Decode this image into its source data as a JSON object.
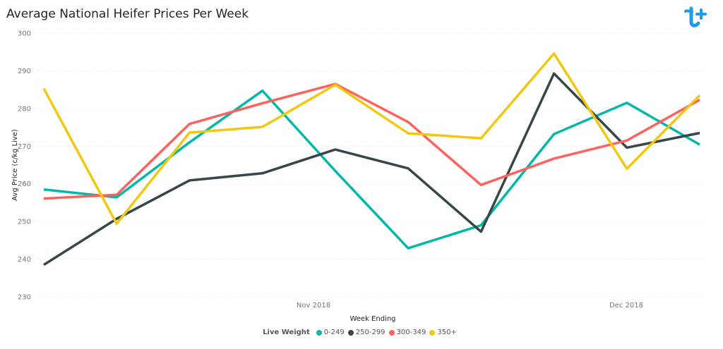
{
  "chart_data": {
    "type": "line",
    "title": "Average National Heifer Prices Per Week",
    "xlabel": "Week Ending",
    "ylabel": "Avg Price (c/kg Live)",
    "ylim": [
      230,
      300
    ],
    "yticks": [
      "230",
      "240",
      "250",
      "260",
      "270",
      "280",
      "290",
      "300"
    ],
    "xticks": [
      "Nov 2018",
      "Dec 2018"
    ],
    "grid": true,
    "legend_placement": "bottom-center",
    "legend_title": "Live Weight",
    "series": [
      {
        "name": "0-249",
        "color": "#01B8AA",
        "values": [
          258.5,
          256.4,
          271.0,
          284.7,
          263.4,
          242.9,
          249.0,
          273.2,
          281.5,
          270.4
        ]
      },
      {
        "name": "250-299",
        "color": "#374649",
        "values": [
          238.5,
          250.7,
          260.9,
          262.8,
          269.1,
          264.1,
          247.3,
          289.3,
          269.6,
          273.5
        ]
      },
      {
        "name": "300-349",
        "color": "#FD625E",
        "values": [
          256.1,
          257.1,
          275.9,
          281.4,
          286.5,
          276.4,
          259.7,
          266.7,
          271.5,
          282.3
        ]
      },
      {
        "name": "350+",
        "color": "#F2C80F",
        "values": [
          285.3,
          249.4,
          273.6,
          275.1,
          286.3,
          273.4,
          272.1,
          294.6,
          264.0,
          283.5
        ]
      }
    ]
  }
}
